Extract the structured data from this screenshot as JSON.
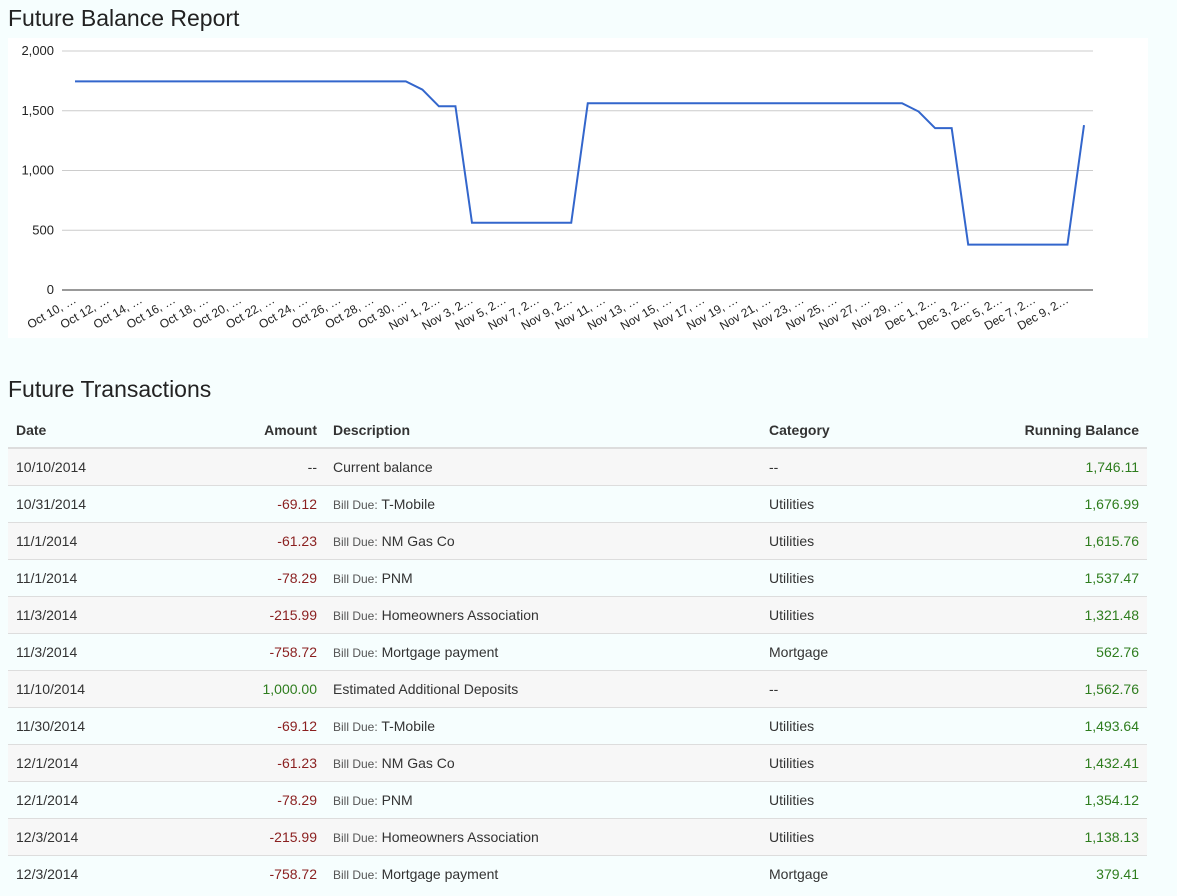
{
  "chart_title": "Future Balance Report",
  "table_title": "Future Transactions",
  "chart_data": {
    "type": "line",
    "title": "Future Balance Report",
    "x_tick_labels": [
      "Oct 10, …",
      "Oct 12, …",
      "Oct 14, …",
      "Oct 16, …",
      "Oct 18, …",
      "Oct 20, …",
      "Oct 22, …",
      "Oct 24, …",
      "Oct 26, …",
      "Oct 28, …",
      "Oct 30, …",
      "Nov 1, 2…",
      "Nov 3, 2…",
      "Nov 5, 2…",
      "Nov 7, 2…",
      "Nov 9, 2…",
      "Nov 11, …",
      "Nov 13, …",
      "Nov 15, …",
      "Nov 17, …",
      "Nov 19, …",
      "Nov 21, …",
      "Nov 23, …",
      "Nov 25, …",
      "Nov 27, …",
      "Nov 29, …",
      "Dec 1, 2…",
      "Dec 3, 2…",
      "Dec 5, 2…",
      "Dec 7, 2…",
      "Dec 9, 2…"
    ],
    "x_range": [
      "2014-10-10",
      "2014-12-10"
    ],
    "y_ticks": [
      {
        "v": 0,
        "label": "0"
      },
      {
        "v": 500,
        "label": "500"
      },
      {
        "v": 1000,
        "label": "1,000"
      },
      {
        "v": 1500,
        "label": "1,500"
      },
      {
        "v": 2000,
        "label": "2,000"
      }
    ],
    "ylim": [
      0,
      2000
    ],
    "grid": true,
    "color": "#3366cc",
    "values": [
      1746.11,
      1746.11,
      1746.11,
      1746.11,
      1746.11,
      1746.11,
      1746.11,
      1746.11,
      1746.11,
      1746.11,
      1746.11,
      1746.11,
      1746.11,
      1746.11,
      1746.11,
      1746.11,
      1746.11,
      1746.11,
      1746.11,
      1746.11,
      1746.11,
      1676.99,
      1537.47,
      1537.47,
      562.76,
      562.76,
      562.76,
      562.76,
      562.76,
      562.76,
      562.76,
      1562.76,
      1562.76,
      1562.76,
      1562.76,
      1562.76,
      1562.76,
      1562.76,
      1562.76,
      1562.76,
      1562.76,
      1562.76,
      1562.76,
      1562.76,
      1562.76,
      1562.76,
      1562.76,
      1562.76,
      1562.76,
      1562.76,
      1562.76,
      1493.64,
      1354.12,
      1354.12,
      379.41,
      379.41,
      379.41,
      379.41,
      379.41,
      379.41,
      379.41,
      1379.41
    ]
  },
  "table": {
    "headers": {
      "date": "Date",
      "amount": "Amount",
      "description": "Description",
      "category": "Category",
      "balance": "Running Balance"
    },
    "rows": [
      {
        "date": "10/10/2014",
        "amount": "--",
        "prefix": "",
        "description": "Current balance",
        "category": "--",
        "balance": "1,746.11",
        "type": "none"
      },
      {
        "date": "10/31/2014",
        "amount": "-69.12",
        "prefix": "Bill Due:",
        "description": "T-Mobile",
        "category": "Utilities",
        "balance": "1,676.99",
        "type": "neg"
      },
      {
        "date": "11/1/2014",
        "amount": "-61.23",
        "prefix": "Bill Due:",
        "description": "NM Gas Co",
        "category": "Utilities",
        "balance": "1,615.76",
        "type": "neg"
      },
      {
        "date": "11/1/2014",
        "amount": "-78.29",
        "prefix": "Bill Due:",
        "description": "PNM",
        "category": "Utilities",
        "balance": "1,537.47",
        "type": "neg"
      },
      {
        "date": "11/3/2014",
        "amount": "-215.99",
        "prefix": "Bill Due:",
        "description": "Homeowners Association",
        "category": "Utilities",
        "balance": "1,321.48",
        "type": "neg"
      },
      {
        "date": "11/3/2014",
        "amount": "-758.72",
        "prefix": "Bill Due:",
        "description": "Mortgage payment",
        "category": "Mortgage",
        "balance": "562.76",
        "type": "neg"
      },
      {
        "date": "11/10/2014",
        "amount": "1,000.00",
        "prefix": "",
        "description": "Estimated Additional Deposits",
        "category": "--",
        "balance": "1,562.76",
        "type": "pos"
      },
      {
        "date": "11/30/2014",
        "amount": "-69.12",
        "prefix": "Bill Due:",
        "description": "T-Mobile",
        "category": "Utilities",
        "balance": "1,493.64",
        "type": "neg"
      },
      {
        "date": "12/1/2014",
        "amount": "-61.23",
        "prefix": "Bill Due:",
        "description": "NM Gas Co",
        "category": "Utilities",
        "balance": "1,432.41",
        "type": "neg"
      },
      {
        "date": "12/1/2014",
        "amount": "-78.29",
        "prefix": "Bill Due:",
        "description": "PNM",
        "category": "Utilities",
        "balance": "1,354.12",
        "type": "neg"
      },
      {
        "date": "12/3/2014",
        "amount": "-215.99",
        "prefix": "Bill Due:",
        "description": "Homeowners Association",
        "category": "Utilities",
        "balance": "1,138.13",
        "type": "neg"
      },
      {
        "date": "12/3/2014",
        "amount": "-758.72",
        "prefix": "Bill Due:",
        "description": "Mortgage payment",
        "category": "Mortgage",
        "balance": "379.41",
        "type": "neg"
      }
    ]
  }
}
